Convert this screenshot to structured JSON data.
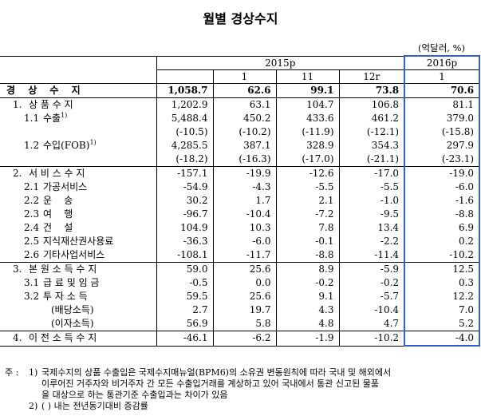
{
  "title": "월별 경상수지",
  "unit": "(억달러, %)",
  "header": {
    "year_2015": "2015p",
    "year_2016": "2016p",
    "cols": [
      "",
      "1",
      "11",
      "12r",
      "1"
    ]
  },
  "rows": [
    {
      "code": "",
      "label": "경 상 수 지",
      "values": [
        "1,058.7",
        "62.6",
        "99.1",
        "73.8",
        "70.6"
      ]
    },
    {
      "code": "1.",
      "label": "상 품 수 지",
      "values": [
        "1,202.9",
        "63.1",
        "104.7",
        "106.8",
        "81.1"
      ]
    },
    {
      "code": "1.1",
      "label": "수출",
      "sup": "1)",
      "values": [
        "5,488.4",
        "450.2",
        "433.6",
        "461.2",
        "379.0"
      ]
    },
    {
      "code": "",
      "label": "",
      "values": [
        "(-10.5)",
        "(-10.2)",
        "(-11.9)",
        "(-12.1)",
        "(-15.8)"
      ]
    },
    {
      "code": "1.2",
      "label": "수입(FOB)",
      "sup": "1)",
      "values": [
        "4,285.5",
        "387.1",
        "328.9",
        "354.3",
        "297.9"
      ]
    },
    {
      "code": "",
      "label": "",
      "values": [
        "(-18.2)",
        "(-16.3)",
        "(-17.0)",
        "(-21.1)",
        "(-23.1)"
      ]
    },
    {
      "code": "2.",
      "label": "서 비 스 수 지",
      "values": [
        "-157.1",
        "-19.9",
        "-12.6",
        "-17.0",
        "-19.0"
      ]
    },
    {
      "code": "2.1",
      "label": "가공서비스",
      "values": [
        "-54.9",
        "-4.3",
        "-5.5",
        "-5.5",
        "-6.0"
      ]
    },
    {
      "code": "2.2",
      "label": "운    송",
      "values": [
        "30.2",
        "1.7",
        "2.1",
        "-1.0",
        "-1.6"
      ]
    },
    {
      "code": "2.3",
      "label": "여    행",
      "values": [
        "-96.7",
        "-10.4",
        "-7.2",
        "-9.5",
        "-8.8"
      ]
    },
    {
      "code": "2.4",
      "label": "건    설",
      "values": [
        "104.9",
        "10.3",
        "7.8",
        "13.4",
        "6.9"
      ]
    },
    {
      "code": "2.5",
      "label": "지식재산권사용료",
      "values": [
        "-36.3",
        "-6.0",
        "-0.1",
        "-2.2",
        "0.2"
      ]
    },
    {
      "code": "2.6",
      "label": "기타사업서비스",
      "values": [
        "-108.1",
        "-11.7",
        "-8.8",
        "-11.4",
        "-10.2"
      ]
    },
    {
      "code": "3.",
      "label": "본 원 소 득 수 지",
      "values": [
        "59.0",
        "25.6",
        "8.9",
        "-5.9",
        "12.5"
      ]
    },
    {
      "code": "3.1",
      "label": "급 료 및 임 금",
      "values": [
        "-0.5",
        "0.0",
        "-0.2",
        "-0.2",
        "0.3"
      ]
    },
    {
      "code": "3.2",
      "label": "투 자 소 득",
      "values": [
        "59.5",
        "25.6",
        "9.1",
        "-5.7",
        "12.2"
      ]
    },
    {
      "code": "",
      "label": "(배당소득)",
      "values": [
        "2.7",
        "19.7",
        "4.3",
        "-10.4",
        "7.0"
      ]
    },
    {
      "code": "",
      "label": "(이자소득)",
      "values": [
        "56.9",
        "5.8",
        "4.8",
        "4.7",
        "5.2"
      ]
    },
    {
      "code": "4.",
      "label": "이 전 소 득 수 지",
      "values": [
        "-46.1",
        "-6.2",
        "-1.9",
        "-10.2",
        "-4.0"
      ]
    }
  ],
  "notes": {
    "label": "주 :",
    "items": [
      {
        "idx": "1)",
        "lines": [
          "국제수지의 상품 수출입은 국제수지매뉴얼(BPM6)의 소유권 변동원칙에 따라 국내 및 해외에서",
          "이루어진 거주자와 비거주자 간 모든 수출입거래를 계상하고 있어 국내에서 통관 신고된 물품",
          "을 대상으로 하는 통관기준 수출입과는 차이가 있음"
        ]
      },
      {
        "idx": "2)",
        "lines": [
          "(  ) 내는 전년동기대비 증감률"
        ]
      }
    ]
  },
  "colors": {
    "highlight": "#2f5fd6"
  }
}
